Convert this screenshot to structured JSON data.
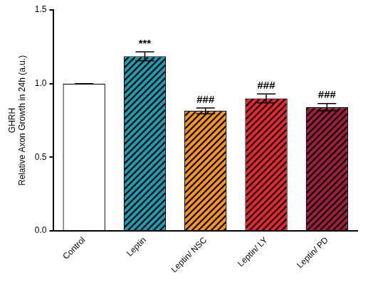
{
  "chart_data": {
    "type": "bar",
    "title": "GHRH",
    "y_label": "Relative Axon Growth in 24h (a.u.)",
    "categories": [
      "Control",
      "Leptin",
      "Leptin/ NSC",
      "Leptin/ LY",
      "Leptin/ PD"
    ],
    "values": [
      1.0,
      1.185,
      0.815,
      0.9,
      0.84
    ],
    "errors": [
      0,
      0.03,
      0.02,
      0.03,
      0.025
    ],
    "colors": [
      "#ffffff",
      "#1b9cb3",
      "#f7941e",
      "#e8262b",
      "#a01c3c"
    ],
    "annotations": [
      {
        "category": "Leptin",
        "text": "***"
      },
      {
        "category": "Leptin/ NSC",
        "text": "###"
      },
      {
        "category": "Leptin/ LY",
        "text": "###"
      },
      {
        "category": "Leptin/ PD",
        "text": "###"
      }
    ],
    "ylim": [
      0,
      1.5
    ],
    "yticks": [
      {
        "value": 0,
        "label": "0.0"
      },
      {
        "value": 0.5,
        "label": "0.5"
      },
      {
        "value": 1.0,
        "label": "1.0"
      },
      {
        "value": 1.5,
        "label": "1.5"
      }
    ],
    "grid": false
  }
}
